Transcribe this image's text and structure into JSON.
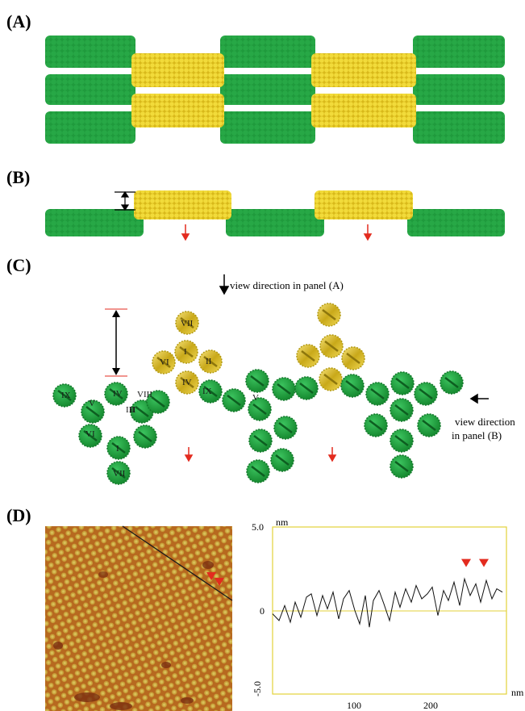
{
  "colors": {
    "green": "#1f9a3c",
    "green_dark": "#137a2b",
    "yellow": "#e7cc25",
    "yellow_dark": "#b39a12",
    "red": "#e32b1f",
    "afm_bg": "#b8661c"
  },
  "panels": {
    "a": {
      "label": "(A)"
    },
    "b": {
      "label": "(B)"
    },
    "c": {
      "label": "(C)",
      "view_a": "view direction in panel (A)",
      "view_b_line1": "view direction",
      "view_b_line2": "in panel (B)",
      "mol1": [
        "IX",
        "V",
        "IV",
        "III",
        "II",
        "VI",
        "I",
        "VII",
        "VIII"
      ],
      "mol1_blue": [
        "III",
        "II",
        "II"
      ],
      "mol2": [
        "VII",
        "I",
        "VI",
        "II",
        "IV",
        "IX",
        "V",
        "III",
        "V"
      ],
      "roman_annot": [
        "VIII(",
        "II)",
        "IX(",
        ")",
        "V(",
        ")",
        "III(",
        "IV",
        "IV"
      ]
    },
    "d": {
      "label": "(D)",
      "profile": {
        "y_unit": "nm",
        "x_unit": "nm",
        "y_ticks": [
          "5.0",
          "0",
          "-5.0"
        ],
        "x_ticks": [
          "100",
          "200"
        ]
      }
    }
  },
  "chart_data": {
    "type": "line",
    "title": "",
    "xlabel": "nm",
    "ylabel": "nm",
    "xlim": [
      0,
      290
    ],
    "ylim": [
      -5.0,
      5.0
    ],
    "x": [
      0,
      8,
      15,
      22,
      28,
      35,
      42,
      48,
      55,
      62,
      68,
      75,
      82,
      88,
      95,
      102,
      108,
      115,
      120,
      125,
      132,
      138,
      145,
      152,
      158,
      165,
      172,
      178,
      185,
      192,
      198,
      205,
      212,
      218,
      225,
      232,
      238,
      245,
      252,
      258,
      265,
      272,
      278,
      285
    ],
    "y": [
      -0.2,
      -0.6,
      0.3,
      -0.7,
      0.5,
      -0.4,
      0.8,
      1.0,
      -0.3,
      0.9,
      0.1,
      1.1,
      -0.5,
      0.7,
      1.2,
      0.0,
      -0.8,
      0.9,
      -1.0,
      0.6,
      1.2,
      0.4,
      -0.6,
      1.1,
      0.2,
      1.3,
      0.5,
      1.5,
      0.7,
      1.0,
      1.4,
      -0.3,
      1.2,
      0.6,
      1.7,
      0.3,
      1.9,
      0.9,
      1.6,
      0.5,
      1.8,
      0.7,
      1.3,
      1.1
    ],
    "markers_x": [
      240,
      262
    ],
    "grid": false
  }
}
